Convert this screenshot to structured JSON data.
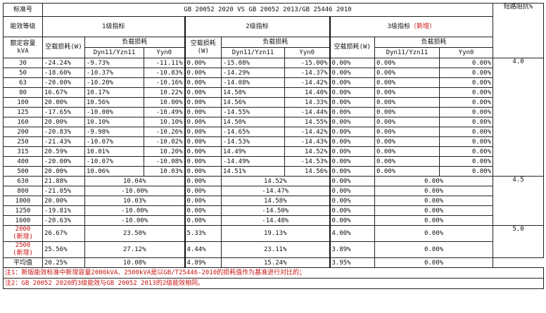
{
  "header": {
    "standard_label": "标准号",
    "title": "GB 20052 2020 VS GB 20052 2013/GB 25446 2010",
    "impedance_label": "短路阻抗%",
    "grade_label": "能效等级",
    "grade1": "1级指标",
    "grade2": "2级指标",
    "grade3_prefix": "3级指标",
    "grade3_new": "（新增）",
    "capacity_label": "额定容量kVA",
    "noload": "空载损耗(W)",
    "noload2": "空载损耗(W)",
    "noload3": "空载损耗(W)",
    "load": "负载损耗",
    "sub_dyn": "Dyn11/Yzn11",
    "sub_yyn": "Yyn0"
  },
  "rows_a": [
    {
      "cap": "30",
      "v": [
        "-24.24%",
        "-9.73%",
        "-11.11%",
        "0.00%",
        "-15.08%",
        "-15.00%",
        "0.00%",
        "0.00%",
        "0.00%"
      ]
    },
    {
      "cap": "50",
      "v": [
        "-18.60%",
        "-10.37%",
        "-10.83%",
        "0.00%",
        "-14.29%",
        "-14.37%",
        "0.00%",
        "0.00%",
        "0.00%"
      ]
    },
    {
      "cap": "63",
      "v": [
        "-20.00%",
        "-10.20%",
        "-10.16%",
        "0.00%",
        "-14.08%",
        "-14.42%",
        "0.00%",
        "0.00%",
        "0.00%"
      ]
    },
    {
      "cap": "80",
      "v": [
        "16.67%",
        "10.17%",
        "10.22%",
        "0.00%",
        "14.50%",
        "14.40%",
        "0.00%",
        "0.00%",
        "0.00%"
      ]
    },
    {
      "cap": "100",
      "v": [
        "20.00%",
        "10.56%",
        "10.00%",
        "0.00%",
        "14.56%",
        "14.33%",
        "0.00%",
        "0.00%",
        "0.00%"
      ]
    },
    {
      "cap": "125",
      "v": [
        "-17.65%",
        "-10.00%",
        "-10.49%",
        "0.00%",
        "-14.55%",
        "-14.44%",
        "0.00%",
        "0.00%",
        "0.00%"
      ]
    },
    {
      "cap": "160",
      "v": [
        "20.00%",
        "10.10%",
        "10.10%",
        "0.00%",
        "14.50%",
        "14.55%",
        "0.00%",
        "0.00%",
        "0.00%"
      ]
    },
    {
      "cap": "200",
      "v": [
        "-20.83%",
        "-9.98%",
        "-10.26%",
        "0.00%",
        "-14.65%",
        "-14.42%",
        "0.00%",
        "0.00%",
        "0.00%"
      ]
    },
    {
      "cap": "250",
      "v": [
        "-21.43%",
        "-10.07%",
        "-10.02%",
        "0.00%",
        "-14.53%",
        "-14.43%",
        "0.00%",
        "0.00%",
        "0.00%"
      ]
    },
    {
      "cap": "315",
      "v": [
        "20.59%",
        "10.01%",
        "10.20%",
        "0.00%",
        "14.49%",
        "14.52%",
        "0.00%",
        "0.00%",
        "0.00%"
      ]
    },
    {
      "cap": "400",
      "v": [
        "-20.00%",
        "-10.07%",
        "-10.08%",
        "0.00%",
        "-14.49%",
        "-14.53%",
        "0.00%",
        "0.00%",
        "0.00%"
      ]
    },
    {
      "cap": "500",
      "v": [
        "20.00%",
        "10.06%",
        "10.03%",
        "0.00%",
        "14.51%",
        "14.56%",
        "0.00%",
        "0.00%",
        "0.00%"
      ]
    }
  ],
  "imp_a": "4.0",
  "rows_b": [
    {
      "cap": "630",
      "v": [
        "21.88%",
        "10.04%",
        "0.00%",
        "14.52%",
        "0.00%",
        "0.00%"
      ]
    },
    {
      "cap": "800",
      "v": [
        "-21.05%",
        "-10.00%",
        "0.00%",
        "-14.47%",
        "0.00%",
        "0.00%"
      ]
    },
    {
      "cap": "1000",
      "v": [
        "20.00%",
        "10.03%",
        "0.00%",
        "14.58%",
        "0.00%",
        "0.00%"
      ]
    },
    {
      "cap": "1250",
      "v": [
        "-19.81%",
        "-10.00%",
        "0.00%",
        "-14.50%",
        "0.00%",
        "0.00%"
      ]
    },
    {
      "cap": "1600",
      "v": [
        "-20.63%",
        "-10.00%",
        "0.00%",
        "-14.48%",
        "0.00%",
        "0.00%"
      ]
    }
  ],
  "imp_b": "4.5",
  "rows_c": [
    {
      "cap": "2000",
      "tag": "(新增)",
      "v": [
        "26.67%",
        "23.50%",
        "5.33%",
        "19.13%",
        "4.00%",
        "0.00%"
      ]
    },
    {
      "cap": "2500",
      "tag": "(新增)",
      "v": [
        "25.56%",
        "27.12%",
        "4.44%",
        "23.11%",
        "3.89%",
        "0.00%"
      ]
    }
  ],
  "imp_c": "5.0",
  "avg": {
    "cap": "平均值",
    "v": [
      "20.25%",
      "10.08%",
      "4.89%",
      "15.24%",
      "3.95%",
      "0.00%"
    ]
  },
  "notes": {
    "n1": "注1：新版能效标准中新增容量2000kVA、2500kVA是以GB/T25446-2010的损耗值作为基准进行对比的；",
    "n2": "注2：GB 20052 2020的3级能效与GB 20052 2013的2级能效相同。"
  },
  "colors": {
    "accent_red": "#cc1111",
    "border": "#222222"
  }
}
